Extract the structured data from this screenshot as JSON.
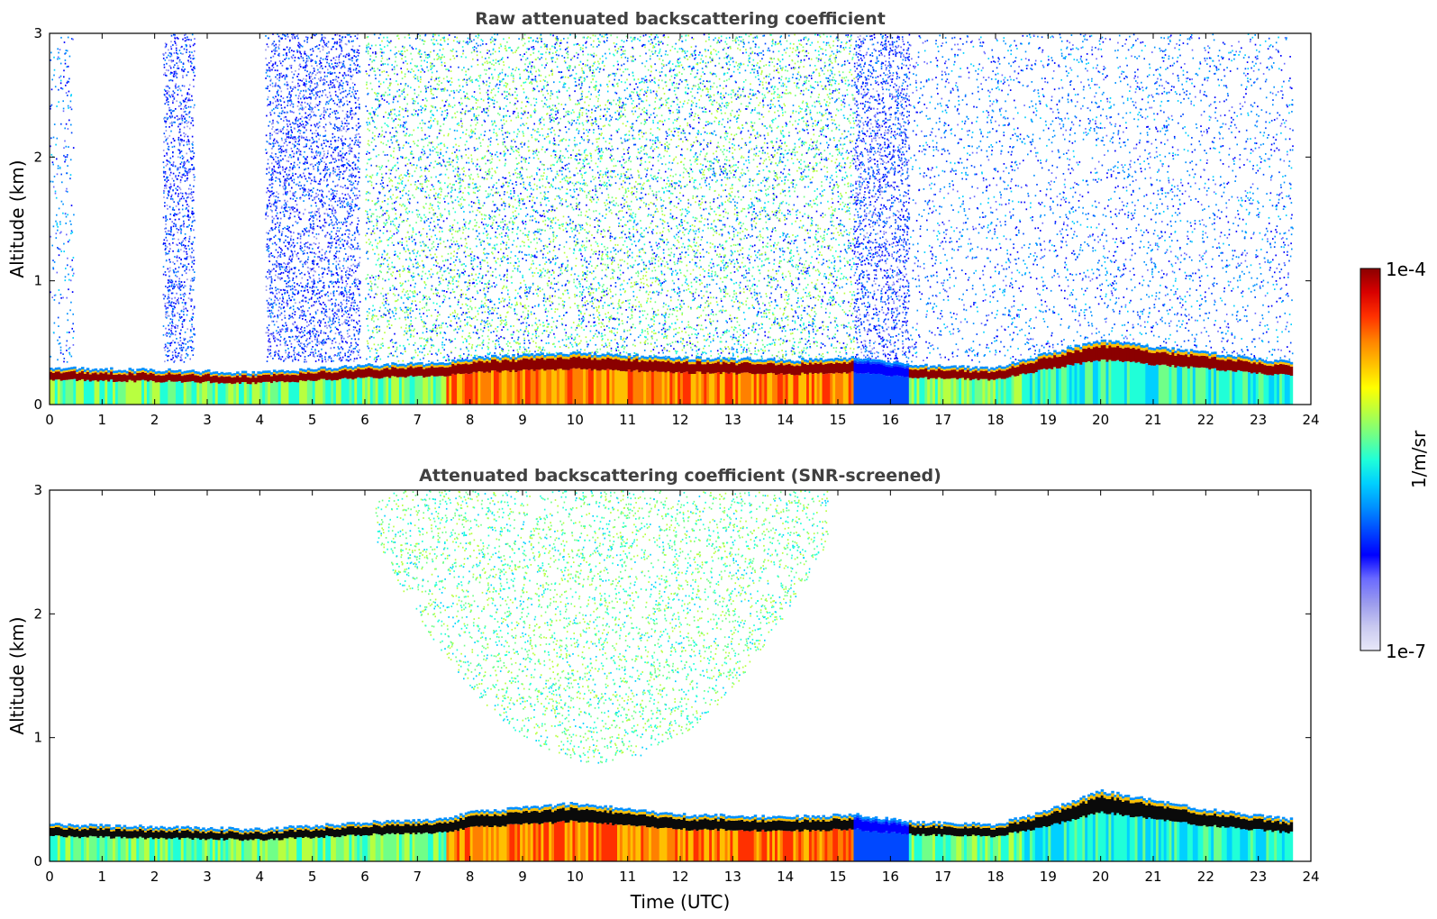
{
  "chart_data": [
    {
      "type": "heatmap",
      "title": "Raw attenuated backscattering coefficient",
      "xlabel": "",
      "ylabel": "Altitude (km)",
      "xlim": [
        0,
        24
      ],
      "ylim": [
        0,
        3
      ],
      "x_ticks": [
        0,
        1,
        2,
        3,
        4,
        5,
        6,
        7,
        8,
        9,
        10,
        11,
        12,
        13,
        14,
        15,
        16,
        17,
        18,
        19,
        20,
        21,
        22,
        23,
        24
      ],
      "y_ticks": [
        0,
        1,
        2,
        3
      ],
      "data_end_hour": 23.65,
      "noise_regions": [
        {
          "start": 0.0,
          "end": 0.45,
          "level": "blue-sparse"
        },
        {
          "start": 2.15,
          "end": 2.75,
          "level": "blue-dense"
        },
        {
          "start": 4.1,
          "end": 5.9,
          "level": "blue-dense"
        },
        {
          "start": 6.0,
          "end": 15.3,
          "level": "green-sparse"
        },
        {
          "start": 15.3,
          "end": 16.35,
          "level": "blue-dense"
        },
        {
          "start": 16.35,
          "end": 23.65,
          "level": "blue-sparse"
        }
      ],
      "boundary_layer_top_km": [
        [
          0,
          0.28
        ],
        [
          2,
          0.26
        ],
        [
          4,
          0.24
        ],
        [
          6,
          0.3
        ],
        [
          7.5,
          0.32
        ],
        [
          8,
          0.36
        ],
        [
          10,
          0.4
        ],
        [
          12,
          0.36
        ],
        [
          14,
          0.34
        ],
        [
          15.3,
          0.36
        ],
        [
          16.35,
          0.3
        ],
        [
          18,
          0.28
        ],
        [
          19,
          0.4
        ],
        [
          20,
          0.5
        ],
        [
          22,
          0.4
        ],
        [
          23.65,
          0.32
        ]
      ]
    },
    {
      "type": "heatmap",
      "title": "Attenuated backscattering coefficient (SNR-screened)",
      "xlabel": "Time (UTC)",
      "ylabel": "Altitude (km)",
      "xlim": [
        0,
        24
      ],
      "ylim": [
        0,
        3
      ],
      "x_ticks": [
        0,
        1,
        2,
        3,
        4,
        5,
        6,
        7,
        8,
        9,
        10,
        11,
        12,
        13,
        14,
        15,
        16,
        17,
        18,
        19,
        20,
        21,
        22,
        23,
        24
      ],
      "y_ticks": [
        0,
        1,
        2,
        3
      ],
      "data_end_hour": 23.65,
      "noise_regions": [
        {
          "start": 6.2,
          "end": 14.8,
          "level": "green-dome"
        }
      ],
      "boundary_layer_top_km": [
        [
          0,
          0.28
        ],
        [
          2,
          0.26
        ],
        [
          4,
          0.24
        ],
        [
          6,
          0.3
        ],
        [
          7.5,
          0.32
        ],
        [
          8,
          0.38
        ],
        [
          10,
          0.45
        ],
        [
          12,
          0.36
        ],
        [
          14,
          0.34
        ],
        [
          15.3,
          0.36
        ],
        [
          16.35,
          0.3
        ],
        [
          18,
          0.28
        ],
        [
          19,
          0.4
        ],
        [
          20,
          0.55
        ],
        [
          22,
          0.4
        ],
        [
          23.65,
          0.32
        ]
      ]
    }
  ],
  "colorbar": {
    "label": "1/m/sr",
    "max_label": "1e-4",
    "min_label": "1e-7",
    "colors": [
      "#e8e8f8",
      "#c8c8f0",
      "#9a9aee",
      "#6a6aff",
      "#0000ff",
      "#0048ff",
      "#0090ff",
      "#00d0ff",
      "#20ffd8",
      "#70ff88",
      "#b8ff40",
      "#ffff00",
      "#ffc000",
      "#ff8000",
      "#ff3000",
      "#d80000",
      "#8b0000"
    ]
  }
}
